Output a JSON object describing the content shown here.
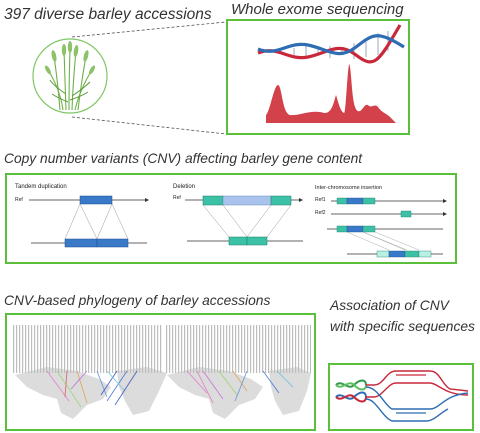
{
  "panel_accessions": {
    "title": "397 diverse barley accessions"
  },
  "panel_exome": {
    "title": "Whole exome sequencing"
  },
  "panel_cnv": {
    "title": "Copy number variants (CNV) affecting barley gene content",
    "tandem": {
      "label": "Tandem duplication",
      "ref": "Ref"
    },
    "deletion": {
      "label": "Deletion",
      "ref": "Ref"
    },
    "insertion": {
      "label": "Inter-chromosome insertion",
      "ref1": "Ref1",
      "ref2": "Ref2"
    }
  },
  "panel_phylogeny": {
    "title": "CNV-based phylogeny of barley accessions"
  },
  "panel_association": {
    "title": "Association of CNV with specific sequences"
  },
  "colors": {
    "frame_green": "#5bbf3c",
    "dna_blue": "#2e6db4",
    "dna_red": "#c9283b",
    "peak_red": "#d3424a",
    "gene_blue": "#3a78c8",
    "gene_teal": "#3cc1a6",
    "barley_green": "#6fb04a"
  }
}
